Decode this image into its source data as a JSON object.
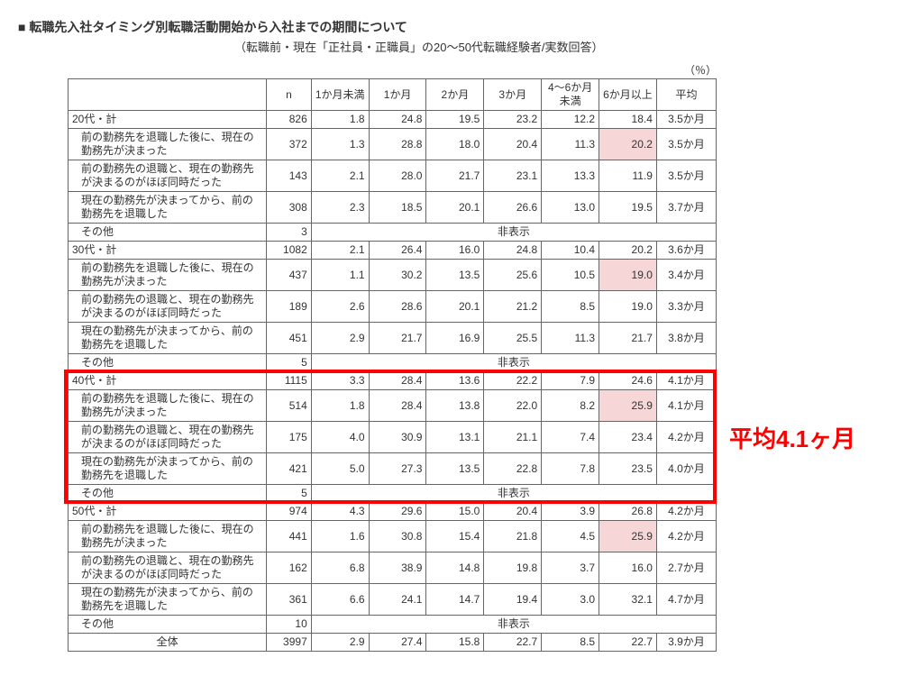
{
  "title": "■  転職先入社タイミング別転職活動開始から入社までの期間について",
  "subtitle": "（転職前・現在「正社員・正職員」の20～50代転職経験者/実数回答）",
  "unit_label": "（％）",
  "callout": "平均4.1ヶ月",
  "columns": [
    "",
    "n",
    "1か月未満",
    "1か月",
    "2か月",
    "3か月",
    "4～6か月未満",
    "6か月以上",
    "平均"
  ],
  "row_labels": {
    "sub_after": "前の勤務先を退職した後に、現在の勤務先が決まった",
    "sub_same": "前の勤務先の退職と、現在の勤務先が決まるのがほぼ同時だった",
    "sub_before": "現在の勤務先が決まってから、前の勤務先を退職した",
    "sub_other": "その他",
    "total": "全体"
  },
  "non_display": "非表示",
  "groups": [
    {
      "header": {
        "label": "20代・計",
        "n": 826,
        "v": [
          1.8,
          24.8,
          19.5,
          23.2,
          12.2,
          18.4
        ],
        "avg": "3.5か月"
      },
      "subs": [
        {
          "key": "sub_after",
          "n": 372,
          "v": [
            1.3,
            28.8,
            18.0,
            20.4,
            11.3,
            20.2
          ],
          "avg": "3.5か月",
          "hl": [
            5
          ]
        },
        {
          "key": "sub_same",
          "n": 143,
          "v": [
            2.1,
            28.0,
            21.7,
            23.1,
            13.3,
            11.9
          ],
          "avg": "3.5か月"
        },
        {
          "key": "sub_before",
          "n": 308,
          "v": [
            2.3,
            18.5,
            20.1,
            26.6,
            13.0,
            19.5
          ],
          "avg": "3.7か月"
        },
        {
          "key": "sub_other",
          "n": 3,
          "nondisp": true
        }
      ]
    },
    {
      "header": {
        "label": "30代・計",
        "n": 1082,
        "v": [
          2.1,
          26.4,
          16.0,
          24.8,
          10.4,
          20.2
        ],
        "avg": "3.6か月"
      },
      "subs": [
        {
          "key": "sub_after",
          "n": 437,
          "v": [
            1.1,
            30.2,
            13.5,
            25.6,
            10.5,
            19.0
          ],
          "avg": "3.4か月",
          "hl": [
            5
          ]
        },
        {
          "key": "sub_same",
          "n": 189,
          "v": [
            2.6,
            28.6,
            20.1,
            21.2,
            8.5,
            19.0
          ],
          "avg": "3.3か月"
        },
        {
          "key": "sub_before",
          "n": 451,
          "v": [
            2.9,
            21.7,
            16.9,
            25.5,
            11.3,
            21.7
          ],
          "avg": "3.8か月"
        },
        {
          "key": "sub_other",
          "n": 5,
          "nondisp": true
        }
      ]
    },
    {
      "header": {
        "label": "40代・計",
        "n": 1115,
        "v": [
          3.3,
          28.4,
          13.6,
          22.2,
          7.9,
          24.6
        ],
        "avg": "4.1か月"
      },
      "subs": [
        {
          "key": "sub_after",
          "n": 514,
          "v": [
            1.8,
            28.4,
            13.8,
            22.0,
            8.2,
            25.9
          ],
          "avg": "4.1か月",
          "hl": [
            5
          ]
        },
        {
          "key": "sub_same",
          "n": 175,
          "v": [
            4.0,
            30.9,
            13.1,
            21.1,
            7.4,
            23.4
          ],
          "avg": "4.2か月"
        },
        {
          "key": "sub_before",
          "n": 421,
          "v": [
            5.0,
            27.3,
            13.5,
            22.8,
            7.8,
            23.5
          ],
          "avg": "4.0か月"
        },
        {
          "key": "sub_other",
          "n": 5,
          "nondisp": true
        }
      ],
      "highlight_group": true
    },
    {
      "header": {
        "label": "50代・計",
        "n": 974,
        "v": [
          4.3,
          29.6,
          15.0,
          20.4,
          3.9,
          26.8
        ],
        "avg": "4.2か月"
      },
      "subs": [
        {
          "key": "sub_after",
          "n": 441,
          "v": [
            1.6,
            30.8,
            15.4,
            21.8,
            4.5,
            25.9
          ],
          "avg": "4.2か月",
          "hl": [
            5
          ]
        },
        {
          "key": "sub_same",
          "n": 162,
          "v": [
            6.8,
            38.9,
            14.8,
            19.8,
            3.7,
            16.0
          ],
          "avg": "2.7か月"
        },
        {
          "key": "sub_before",
          "n": 361,
          "v": [
            6.6,
            24.1,
            14.7,
            19.4,
            3.0,
            32.1
          ],
          "avg": "4.7か月"
        },
        {
          "key": "sub_other",
          "n": 10,
          "nondisp": true
        }
      ]
    }
  ],
  "total_row": {
    "n": 3997,
    "v": [
      2.9,
      27.4,
      15.8,
      22.7,
      8.5,
      22.7
    ],
    "avg": "3.9か月"
  },
  "style": {
    "highlight_box_color": "#ff0000",
    "highlight_cell_bg": "#f6d6d6",
    "border_color": "#666666",
    "text_color": "#333333",
    "background_color": "#ffffff",
    "callout_color": "#ff0000",
    "callout_fontsize": 26
  }
}
